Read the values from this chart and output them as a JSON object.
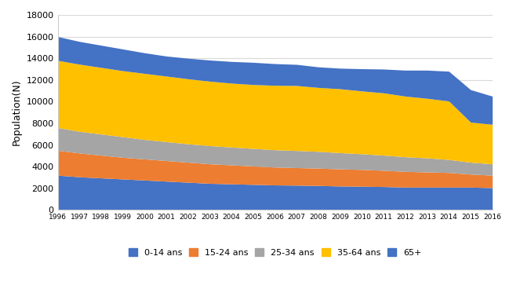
{
  "years": [
    1996,
    1997,
    1998,
    1999,
    2000,
    2001,
    2002,
    2003,
    2004,
    2005,
    2006,
    2007,
    2008,
    2009,
    2010,
    2011,
    2012,
    2013,
    2014,
    2015,
    2016
  ],
  "age_0_14": [
    3200,
    3050,
    2950,
    2850,
    2750,
    2650,
    2550,
    2450,
    2400,
    2350,
    2300,
    2280,
    2250,
    2200,
    2180,
    2150,
    2100,
    2100,
    2100,
    2100,
    2050
  ],
  "age_15_24": [
    2300,
    2200,
    2100,
    2000,
    1950,
    1900,
    1850,
    1800,
    1750,
    1700,
    1650,
    1620,
    1600,
    1580,
    1550,
    1500,
    1450,
    1400,
    1350,
    1200,
    1150
  ],
  "age_25_34": [
    2100,
    2000,
    1950,
    1900,
    1800,
    1750,
    1700,
    1680,
    1650,
    1620,
    1600,
    1580,
    1550,
    1500,
    1450,
    1400,
    1350,
    1300,
    1200,
    1100,
    1050
  ],
  "age_35_64": [
    6200,
    6200,
    6150,
    6100,
    6100,
    6050,
    6000,
    5950,
    5900,
    5900,
    5950,
    6000,
    5900,
    5900,
    5800,
    5750,
    5600,
    5500,
    5400,
    3700,
    3650
  ],
  "age_65p": [
    2200,
    2100,
    2050,
    2000,
    1900,
    1850,
    1900,
    1950,
    2000,
    2050,
    2000,
    1950,
    1900,
    1900,
    2050,
    2200,
    2400,
    2600,
    2750,
    3000,
    2600
  ],
  "color_0_14": "#4472C4",
  "color_15_24": "#ED7D31",
  "color_25_34": "#A5A5A5",
  "color_35_64": "#FFC000",
  "color_65p": "#4472C4",
  "ylabel": "Population(N)",
  "ylim": [
    0,
    18000
  ],
  "yticks": [
    0,
    2000,
    4000,
    6000,
    8000,
    10000,
    12000,
    14000,
    16000,
    18000
  ],
  "legend_labels": [
    "0-14 ans",
    "15-24 ans",
    "25-34 ans",
    "35-64 ans",
    "65+"
  ],
  "background_color": "#FFFFFF",
  "grid_color": "#D9D9D9"
}
